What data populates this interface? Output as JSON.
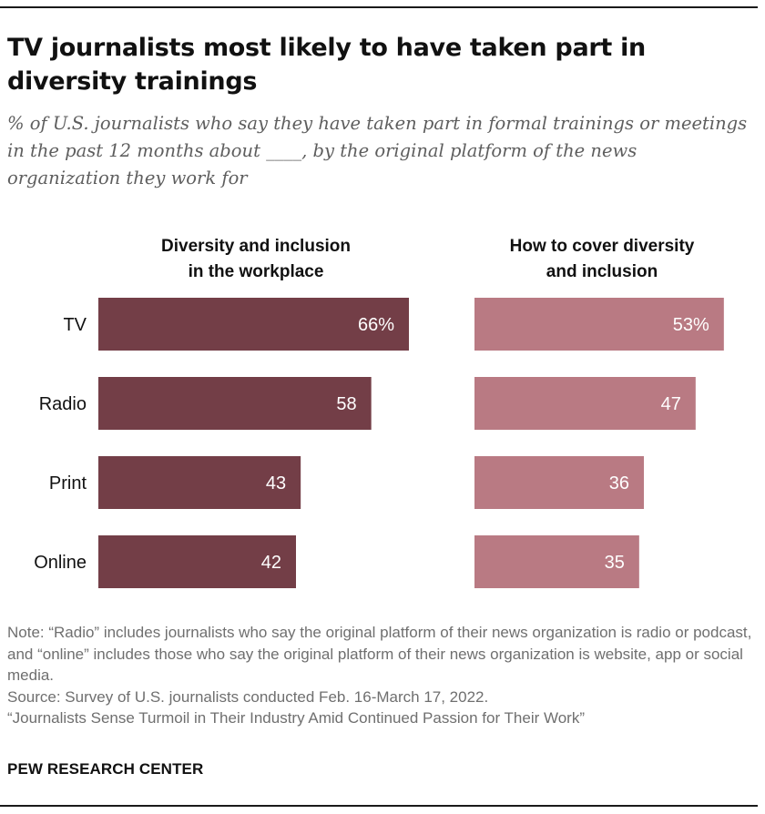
{
  "title": "TV journalists most likely to have taken part in diversity trainings",
  "subtitle": "% of U.S. journalists who say they have taken part in formal trainings or meetings in the past 12 months about ____, by the original platform of the news organization they work for",
  "chart_data": {
    "type": "bar",
    "orientation": "horizontal",
    "categories": [
      "TV",
      "Radio",
      "Print",
      "Online"
    ],
    "series": [
      {
        "name": "Diversity and inclusion in the workplace",
        "name_lines": [
          "Diversity and inclusion",
          "in the workplace"
        ],
        "values": [
          66,
          58,
          43,
          42
        ],
        "labels": [
          "66%",
          "58",
          "43",
          "42"
        ],
        "color": "#733e47"
      },
      {
        "name": "How to cover diversity and inclusion",
        "name_lines": [
          "How to cover diversity",
          "and inclusion"
        ],
        "values": [
          53,
          47,
          36,
          35
        ],
        "labels": [
          "53%",
          "47",
          "36",
          "35"
        ],
        "color": "#b97a83"
      }
    ],
    "xlim": [
      0,
      100
    ],
    "grid": false,
    "legend": "column headers above each panel"
  },
  "notes": {
    "note": "Note: “Radio” includes journalists who say the original platform of their news organization is radio or podcast, and “online” includes those who say the original platform of their news organization is website, app or social media.",
    "source": "Source: Survey of U.S. journalists conducted Feb. 16-March 17, 2022.",
    "report": "“Journalists Sense Turmoil in Their Industry Amid Continued Passion for Their Work”"
  },
  "brand": "PEW RESEARCH CENTER"
}
